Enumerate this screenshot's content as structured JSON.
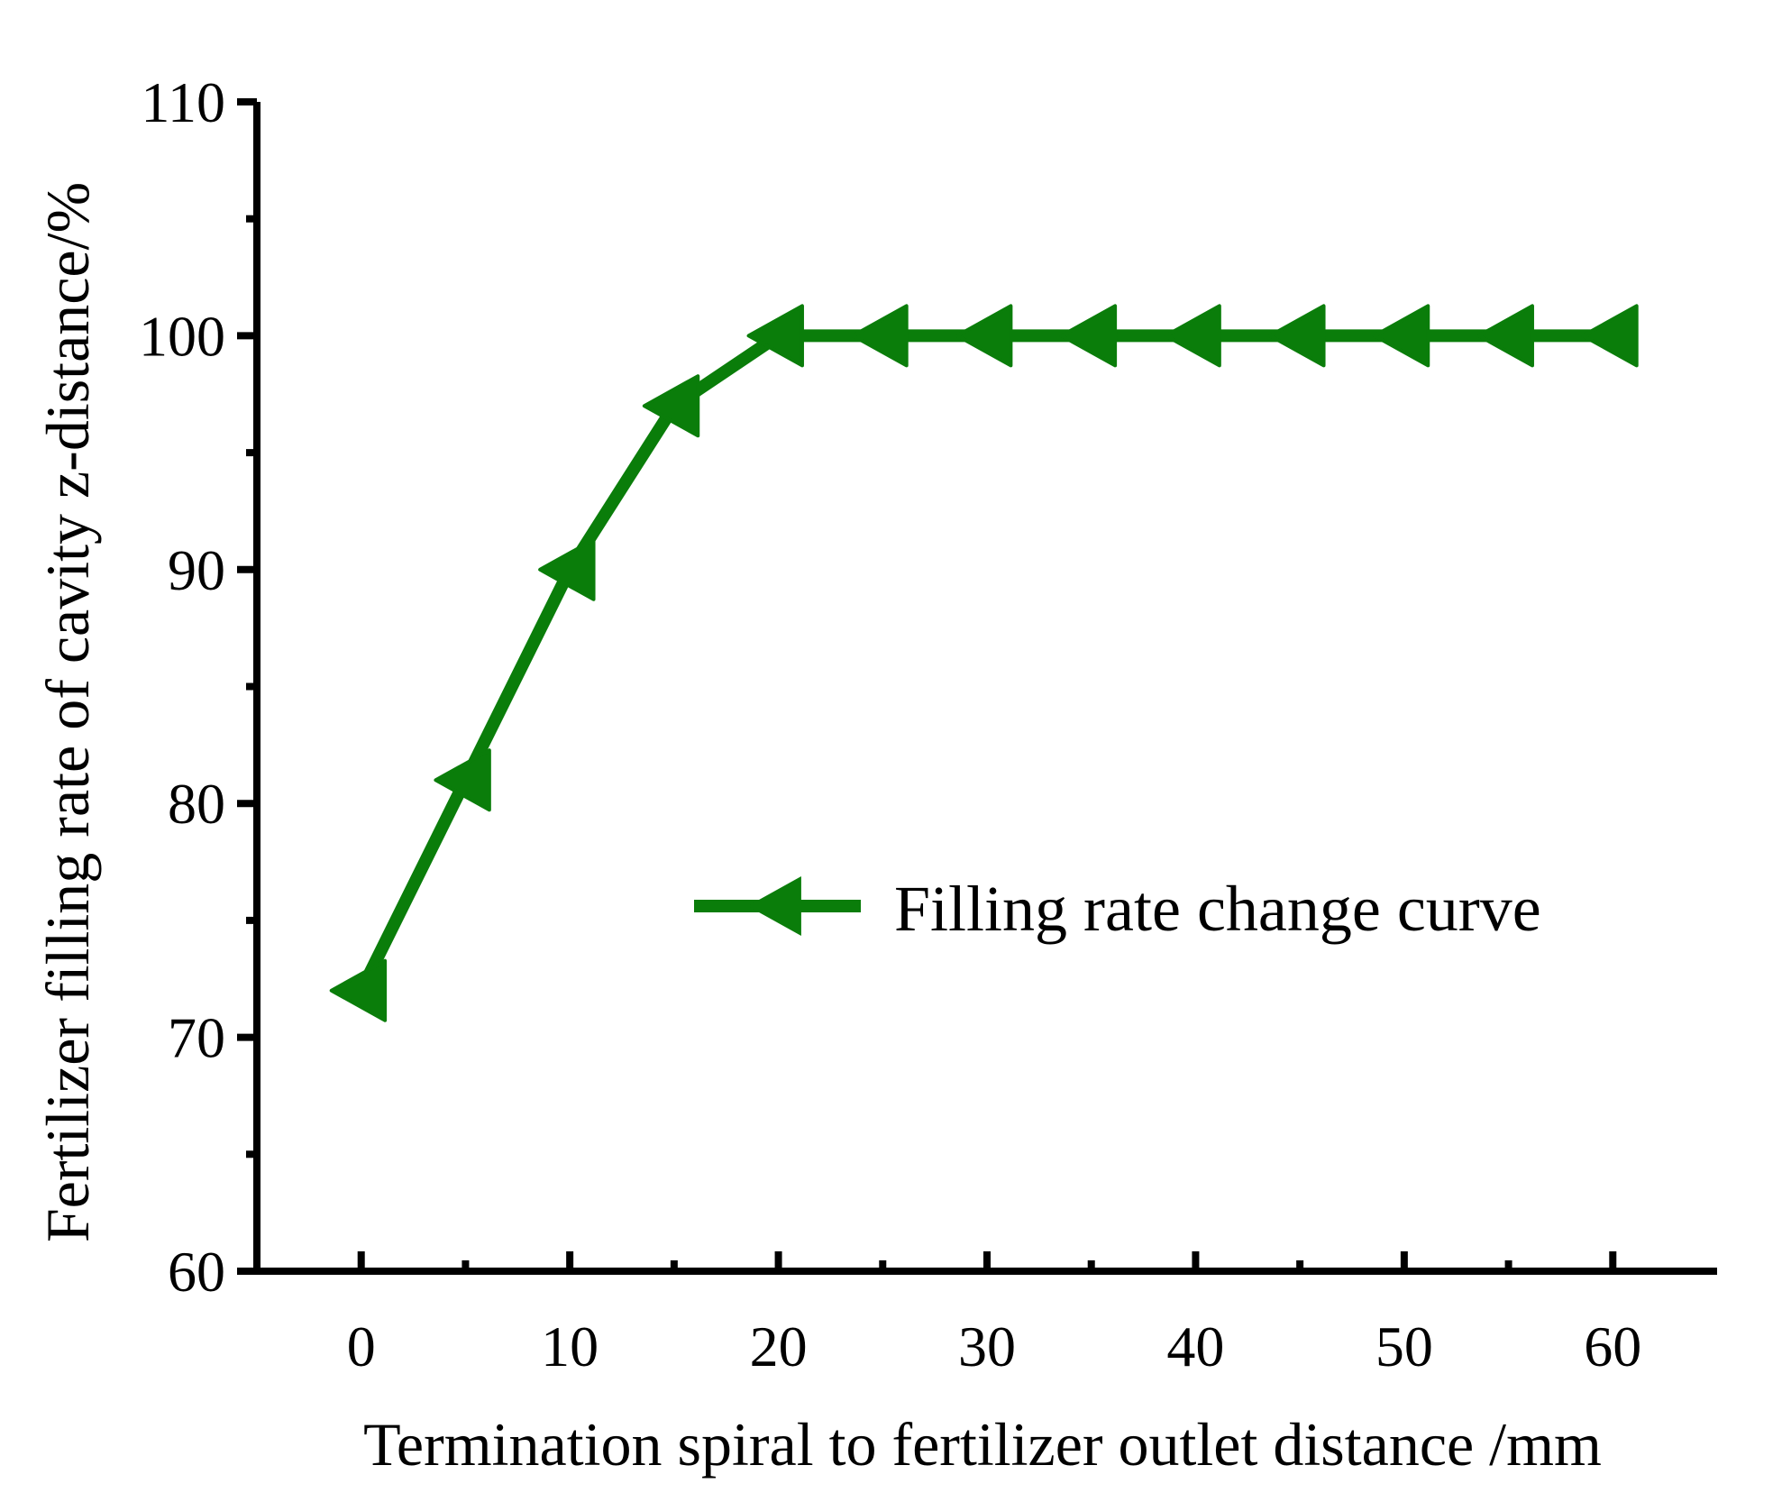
{
  "chart_data": {
    "type": "line",
    "title": "",
    "xlabel": "Termination spiral to fertilizer outlet distance /mm",
    "ylabel": "Fertilizer filling rate of cavity z-distance/%",
    "xlim": [
      -5,
      65
    ],
    "ylim": [
      60,
      110
    ],
    "xticks": [
      0,
      10,
      20,
      30,
      40,
      50,
      60
    ],
    "yticks": [
      60,
      70,
      80,
      90,
      100,
      110
    ],
    "x_minor_step": 5,
    "y_minor_step": 5,
    "grid": false,
    "legend_position": "right-middle",
    "series": [
      {
        "name": "Filling rate change curve",
        "color": "#0a7d0a",
        "marker": "left-triangle",
        "x": [
          0,
          5,
          10,
          15,
          20,
          25,
          30,
          35,
          40,
          45,
          50,
          55,
          60
        ],
        "y": [
          72,
          81,
          90,
          97,
          100,
          100,
          100,
          100,
          100,
          100,
          100,
          100,
          100
        ]
      }
    ]
  }
}
